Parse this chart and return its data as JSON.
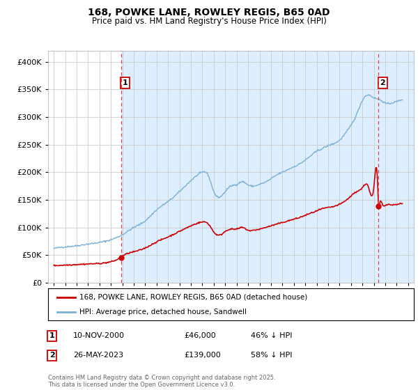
{
  "title": "168, POWKE LANE, ROWLEY REGIS, B65 0AD",
  "subtitle": "Price paid vs. HM Land Registry's House Price Index (HPI)",
  "legend_label_red": "168, POWKE LANE, ROWLEY REGIS, B65 0AD (detached house)",
  "legend_label_blue": "HPI: Average price, detached house, Sandwell",
  "annotation1_date": "10-NOV-2000",
  "annotation1_price": "£46,000",
  "annotation1_hpi": "46% ↓ HPI",
  "annotation1_year": 2000.87,
  "annotation1_value_red": 46000,
  "annotation2_date": "26-MAY-2023",
  "annotation2_price": "£139,000",
  "annotation2_hpi": "58% ↓ HPI",
  "annotation2_year": 2023.4,
  "annotation2_value_red": 139000,
  "footer": "Contains HM Land Registry data © Crown copyright and database right 2025.\nThis data is licensed under the Open Government Licence v3.0.",
  "ylim": [
    0,
    420000
  ],
  "xlim_start": 1994.5,
  "xlim_end": 2026.5,
  "background_color": "#ffffff",
  "plot_background": "#ddeeff",
  "plot_background_left": "#ffffff",
  "grid_color": "#cccccc",
  "red_color": "#cc0000",
  "blue_color": "#7ab0d4",
  "vline_color": "#dd4444",
  "shade_color": "#ddeeff"
}
